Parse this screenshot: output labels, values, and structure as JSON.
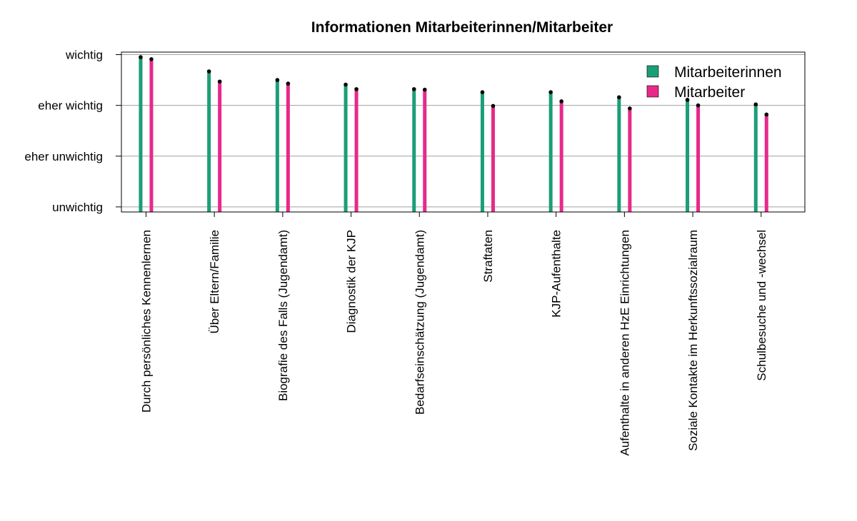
{
  "chart_data": {
    "type": "bar",
    "title": "Informationen Mitarbeiterinnen/Mitarbeiter",
    "xlabel": "",
    "ylabel": "",
    "ylim": [
      0.9,
      4.05
    ],
    "y_ticks": [
      {
        "value": 1,
        "label": "unwichtig"
      },
      {
        "value": 2,
        "label": "eher unwichtig"
      },
      {
        "value": 3,
        "label": "eher wichtig"
      },
      {
        "value": 4,
        "label": "wichtig"
      }
    ],
    "categories": [
      "Durch persönliches Kennenlernen",
      "Über Eltern/Familie",
      "Biografie des Falls (Jugendamt)",
      "Diagnostik der KJP",
      "Bedarfseinschätzung (Jugendamt)",
      "Straftaten",
      "KJP-Aufenthalte",
      "Aufenthalte in anderen HzE Einrichtungen",
      "Soziale Kontakte im Herkunftssozialraum",
      "Schulbesuche und -wechsel"
    ],
    "series": [
      {
        "name": "Mitarbeiterinnen",
        "color": "#1b9e77",
        "values": [
          3.95,
          3.67,
          3.5,
          3.41,
          3.32,
          3.26,
          3.26,
          3.16,
          3.11,
          3.02
        ]
      },
      {
        "name": "Mitarbeiter",
        "color": "#e7298a",
        "values": [
          3.91,
          3.47,
          3.43,
          3.32,
          3.31,
          2.99,
          3.08,
          2.94,
          3.0,
          2.82
        ]
      }
    ],
    "grid": true,
    "legend_position": "top-right",
    "point_marker_color": "#000000"
  }
}
